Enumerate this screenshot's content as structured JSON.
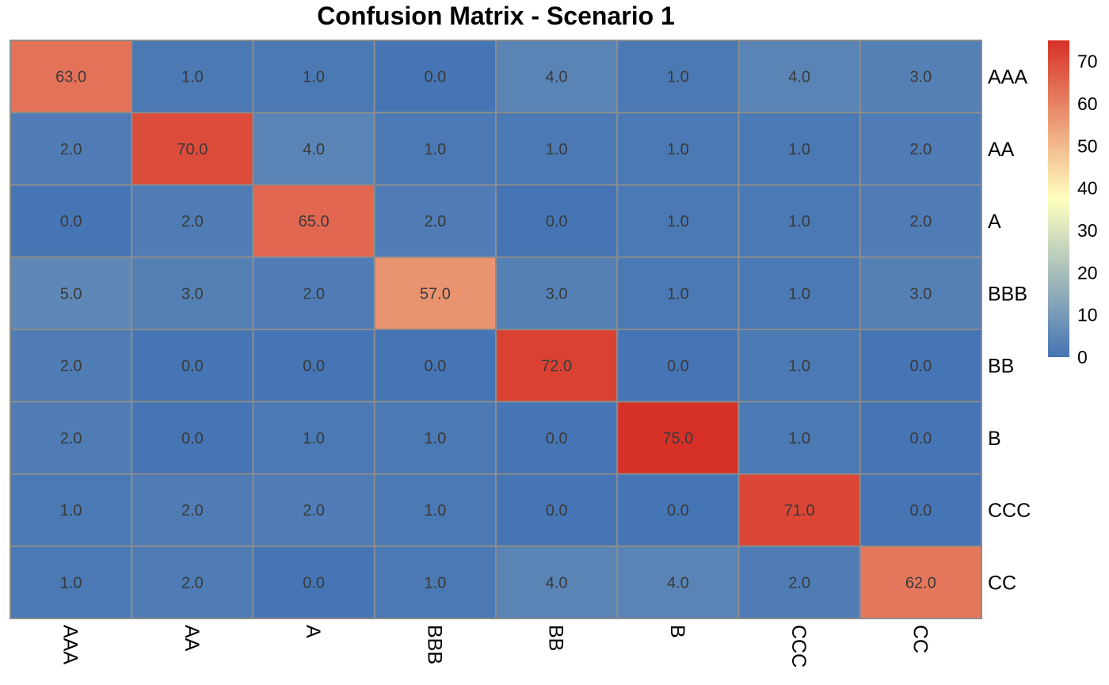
{
  "chart_data": {
    "type": "heatmap",
    "title": "Confusion Matrix - Scenario 1",
    "row_labels": [
      "AAA",
      "AA",
      "A",
      "BBB",
      "BB",
      "B",
      "CCC",
      "CC"
    ],
    "col_labels": [
      "AAA",
      "AA",
      "A",
      "BBB",
      "BB",
      "B",
      "CCC",
      "CC"
    ],
    "values": [
      [
        63,
        1,
        1,
        0,
        4,
        1,
        4,
        3
      ],
      [
        2,
        70,
        4,
        1,
        1,
        1,
        1,
        2
      ],
      [
        0,
        2,
        65,
        2,
        0,
        1,
        1,
        2
      ],
      [
        5,
        3,
        2,
        57,
        3,
        1,
        1,
        3
      ],
      [
        2,
        0,
        0,
        0,
        72,
        0,
        1,
        0
      ],
      [
        2,
        0,
        1,
        1,
        0,
        75,
        1,
        0
      ],
      [
        1,
        2,
        2,
        1,
        0,
        0,
        71,
        0
      ],
      [
        1,
        2,
        0,
        1,
        4,
        4,
        2,
        62
      ]
    ],
    "value_format": "0.0",
    "color_scale": {
      "min": 0,
      "max": 75,
      "low_color": "#4575b4",
      "mid_color": "#ffffbf",
      "high_color": "#d73027",
      "ticks": [
        0,
        10,
        20,
        30,
        40,
        50,
        60,
        70
      ]
    },
    "legend_position": "right",
    "cell_border_color": "#8c8c8c"
  }
}
